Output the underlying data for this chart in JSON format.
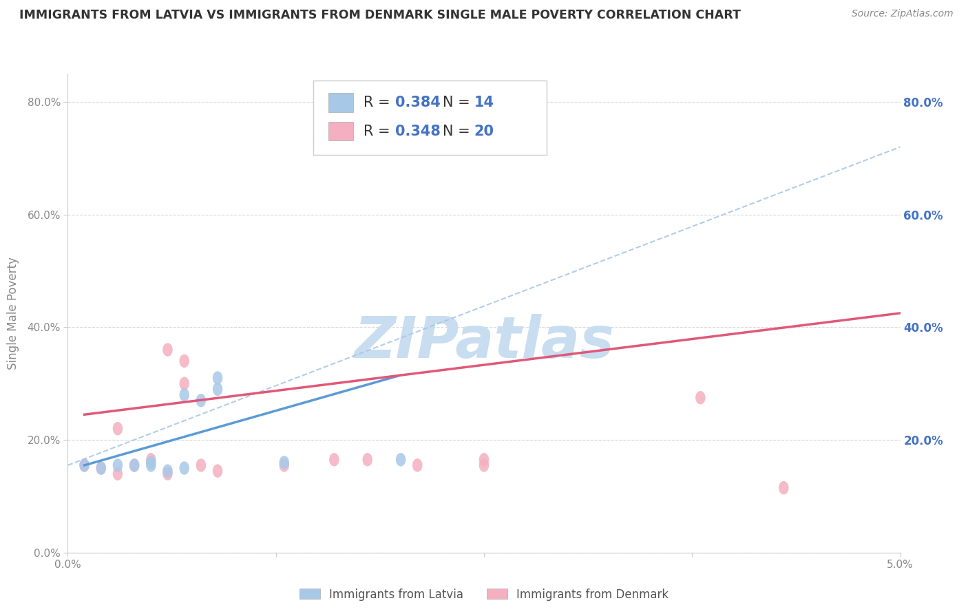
{
  "title": "IMMIGRANTS FROM LATVIA VS IMMIGRANTS FROM DENMARK SINGLE MALE POVERTY CORRELATION CHART",
  "source": "Source: ZipAtlas.com",
  "ylabel": "Single Male Poverty",
  "xlim": [
    0.0,
    0.05
  ],
  "ylim": [
    0.0,
    0.85
  ],
  "yticks": [
    0.0,
    0.2,
    0.4,
    0.6,
    0.8
  ],
  "ytick_labels": [
    "0.0%",
    "20.0%",
    "40.0%",
    "60.0%",
    "80.0%"
  ],
  "right_ytick_labels": [
    "80.0%",
    "60.0%",
    "40.0%",
    "20.0%"
  ],
  "right_ytick_positions": [
    0.8,
    0.6,
    0.4,
    0.2
  ],
  "latvia_R": 0.384,
  "latvia_N": 14,
  "denmark_R": 0.348,
  "denmark_N": 20,
  "latvia_color": "#a8c8e8",
  "denmark_color": "#f4afc0",
  "latvia_line_color": "#5b9bd5",
  "denmark_line_color": "#e05878",
  "dash_line_color": "#a8c8e8",
  "watermark": "ZIPatlas",
  "watermark_color": "#c8ddf0",
  "latvia_scatter_x": [
    0.001,
    0.002,
    0.003,
    0.004,
    0.005,
    0.005,
    0.006,
    0.007,
    0.007,
    0.008,
    0.009,
    0.009,
    0.013,
    0.02
  ],
  "latvia_scatter_y": [
    0.155,
    0.15,
    0.155,
    0.155,
    0.155,
    0.16,
    0.145,
    0.15,
    0.28,
    0.27,
    0.29,
    0.31,
    0.16,
    0.165
  ],
  "denmark_scatter_x": [
    0.001,
    0.002,
    0.003,
    0.003,
    0.004,
    0.005,
    0.006,
    0.006,
    0.007,
    0.007,
    0.008,
    0.009,
    0.013,
    0.016,
    0.018,
    0.021,
    0.025,
    0.025,
    0.038,
    0.043
  ],
  "denmark_scatter_y": [
    0.155,
    0.15,
    0.14,
    0.22,
    0.155,
    0.165,
    0.14,
    0.36,
    0.3,
    0.34,
    0.155,
    0.145,
    0.155,
    0.165,
    0.165,
    0.155,
    0.155,
    0.165,
    0.275,
    0.115
  ],
  "latvia_trend_x": [
    0.001,
    0.02
  ],
  "latvia_trend_y": [
    0.155,
    0.315
  ],
  "denmark_trend_x": [
    0.001,
    0.05
  ],
  "denmark_trend_y": [
    0.245,
    0.425
  ],
  "dash_trend_x": [
    0.0,
    0.05
  ],
  "dash_trend_y": [
    0.155,
    0.72
  ],
  "background_color": "#ffffff",
  "grid_color": "#d8d8d8",
  "title_color": "#333333",
  "axis_label_color": "#888888"
}
